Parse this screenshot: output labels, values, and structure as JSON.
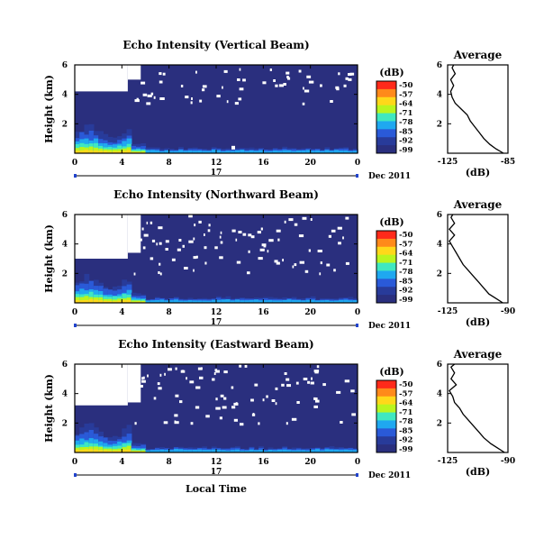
{
  "chart_data": {
    "type": "heatmap",
    "colormap": [
      "#ff2a1a",
      "#ff8a1a",
      "#ffd81a",
      "#b9f51f",
      "#3fe8c0",
      "#1fa8f0",
      "#2a5ad8",
      "#283b9a",
      "#2a2f7e"
    ],
    "colorbar_ticks": [
      "-50",
      "-57",
      "-64",
      "-71",
      "-78",
      "-85",
      "-92",
      "-99"
    ],
    "colorbar_unit": "(dB)",
    "x_ticks": [
      "0",
      "4",
      "8",
      "12",
      "16",
      "20",
      "0"
    ],
    "day_label": "17",
    "date_label": "Dec 2011",
    "xlabel": "Local Time",
    "background_intensity_db": -99,
    "panels": [
      {
        "title": "Echo Intensity (Vertical Beam)",
        "ylabel": "Height (km)",
        "y_ticks": [
          "2",
          "4",
          "6"
        ],
        "ylim": [
          0,
          6
        ],
        "xlim": [
          0,
          24
        ],
        "average": {
          "title": "Average",
          "xlabel": "(dB)",
          "x_ticks": [
            "-125",
            "-85"
          ],
          "y_ticks": [
            "2",
            "4",
            "6"
          ],
          "xlim": [
            -125,
            -85
          ],
          "height_km": [
            0.0,
            0.3,
            0.6,
            1.0,
            1.4,
            1.8,
            2.2,
            2.6,
            3.0,
            3.4,
            3.8,
            4.2,
            4.6,
            5.0,
            5.4,
            5.8,
            6.0
          ],
          "intensity_db": [
            -88,
            -93,
            -97,
            -101,
            -104,
            -107,
            -110,
            -112,
            -116,
            -120,
            -122,
            -123,
            -121,
            -123,
            -120,
            -122,
            -121
          ]
        }
      },
      {
        "title": "Echo Intensity (Northward Beam)",
        "ylabel": "Height (km)",
        "y_ticks": [
          "2",
          "4",
          "6"
        ],
        "ylim": [
          0,
          6
        ],
        "xlim": [
          0,
          24
        ],
        "average": {
          "title": "Average",
          "xlabel": "(dB)",
          "x_ticks": [
            "-125",
            "-90"
          ],
          "y_ticks": [
            "2",
            "4",
            "6"
          ],
          "xlim": [
            -125,
            -90
          ],
          "height_km": [
            0.0,
            0.3,
            0.6,
            1.0,
            1.4,
            1.8,
            2.2,
            2.6,
            3.0,
            3.4,
            3.8,
            4.2,
            4.6,
            5.0,
            5.4,
            5.8,
            6.0
          ],
          "intensity_db": [
            -93,
            -97,
            -101,
            -104,
            -107,
            -110,
            -113,
            -116,
            -118,
            -120,
            -122,
            -124,
            -121,
            -124,
            -121,
            -123,
            -122
          ]
        }
      },
      {
        "title": "Echo Intensity (Eastward Beam)",
        "ylabel": "Height (km)",
        "y_ticks": [
          "2",
          "4",
          "6"
        ],
        "ylim": [
          0,
          6
        ],
        "xlim": [
          0,
          24
        ],
        "average": {
          "title": "Average",
          "xlabel": "(dB)",
          "x_ticks": [
            "-125",
            "-90"
          ],
          "y_ticks": [
            "2",
            "4",
            "6"
          ],
          "xlim": [
            -125,
            -90
          ],
          "height_km": [
            0.0,
            0.3,
            0.6,
            1.0,
            1.4,
            1.8,
            2.2,
            2.6,
            3.0,
            3.4,
            3.8,
            4.2,
            4.6,
            5.0,
            5.4,
            5.8,
            6.0
          ],
          "intensity_db": [
            -92,
            -96,
            -100,
            -104,
            -107,
            -110,
            -113,
            -116,
            -118,
            -121,
            -122,
            -124,
            -120,
            -123,
            -121,
            -123,
            -121
          ]
        }
      }
    ]
  }
}
